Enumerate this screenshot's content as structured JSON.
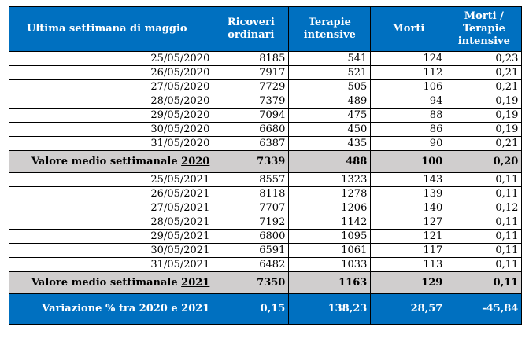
{
  "header": {
    "col1": "Ultima settimana di maggio",
    "col2": [
      "Ricoveri",
      "ordinari"
    ],
    "col3": [
      "Terapie",
      "intensive"
    ],
    "col4": "Morti",
    "col5": [
      "Morti  /",
      "Terapie",
      "intensive"
    ]
  },
  "rows2020": [
    {
      "date": "25/05/2020",
      "ricoveri": "8185",
      "terapie": "541",
      "morti": "124",
      "ratio": "0,23"
    },
    {
      "date": "26/05/2020",
      "ricoveri": "7917",
      "terapie": "521",
      "morti": "112",
      "ratio": "0,21"
    },
    {
      "date": "27/05/2020",
      "ricoveri": "7729",
      "terapie": "505",
      "morti": "106",
      "ratio": "0,21"
    },
    {
      "date": "28/05/2020",
      "ricoveri": "7379",
      "terapie": "489",
      "morti": "94",
      "ratio": "0,19"
    },
    {
      "date": "29/05/2020",
      "ricoveri": "7094",
      "terapie": "475",
      "morti": "88",
      "ratio": "0,19"
    },
    {
      "date": "30/05/2020",
      "ricoveri": "6680",
      "terapie": "450",
      "morti": "86",
      "ratio": "0,19"
    },
    {
      "date": "31/05/2020",
      "ricoveri": "6387",
      "terapie": "435",
      "morti": "90",
      "ratio": "0,21"
    }
  ],
  "avg2020": {
    "label": "Valore medio settimanale ",
    "year": "2020",
    "ricoveri": "7339",
    "terapie": "488",
    "morti": "100",
    "ratio": "0,20"
  },
  "rows2021": [
    {
      "date": "25/05/2021",
      "ricoveri": "8557",
      "terapie": "1323",
      "morti": "143",
      "ratio": "0,11"
    },
    {
      "date": "26/05/2021",
      "ricoveri": "8118",
      "terapie": "1278",
      "morti": "139",
      "ratio": "0,11"
    },
    {
      "date": "27/05/2021",
      "ricoveri": "7707",
      "terapie": "1206",
      "morti": "140",
      "ratio": "0,12"
    },
    {
      "date": "28/05/2021",
      "ricoveri": "7192",
      "terapie": "1142",
      "morti": "127",
      "ratio": "0,11"
    },
    {
      "date": "29/05/2021",
      "ricoveri": "6800",
      "terapie": "1095",
      "morti": "121",
      "ratio": "0,11"
    },
    {
      "date": "30/05/2021",
      "ricoveri": "6591",
      "terapie": "1061",
      "morti": "117",
      "ratio": "0,11"
    },
    {
      "date": "31/05/2021",
      "ricoveri": "6482",
      "terapie": "1033",
      "morti": "113",
      "ratio": "0,11"
    }
  ],
  "avg2021": {
    "label": "Valore medio settimanale ",
    "year": "2021",
    "ricoveri": "7350",
    "terapie": "1163",
    "morti": "129",
    "ratio": "0,11"
  },
  "variation": {
    "label": "Variazione % tra 2020 e 2021",
    "ricoveri": "0,15",
    "terapie": "138,23",
    "morti": "28,57",
    "ratio": "-45,84"
  },
  "colors": {
    "header_bg": "#0070c0",
    "avg_bg": "#d0cece",
    "text_on_blue": "#ffffff"
  }
}
